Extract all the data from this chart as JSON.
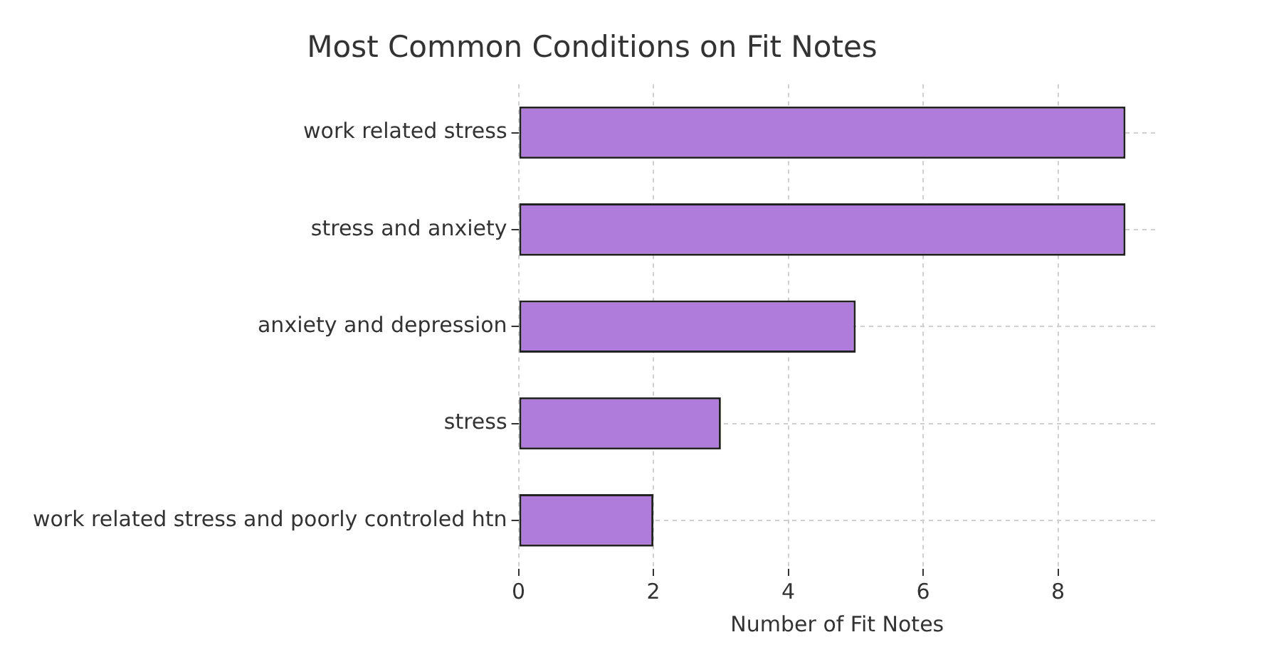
{
  "chart_data": {
    "type": "bar",
    "orientation": "horizontal",
    "title": "Most Common Conditions on Fit Notes",
    "xlabel": "Number of Fit Notes",
    "categories": [
      "work related stress",
      "stress and anxiety",
      "anxiety and depression",
      "stress",
      "work related stress and poorly controled htn"
    ],
    "values": [
      9,
      9,
      5,
      3,
      2
    ],
    "color": "#b07cdb",
    "xlim": [
      0,
      9.45
    ],
    "xticks": [
      0,
      2,
      4,
      6,
      8
    ],
    "grid": true
  }
}
